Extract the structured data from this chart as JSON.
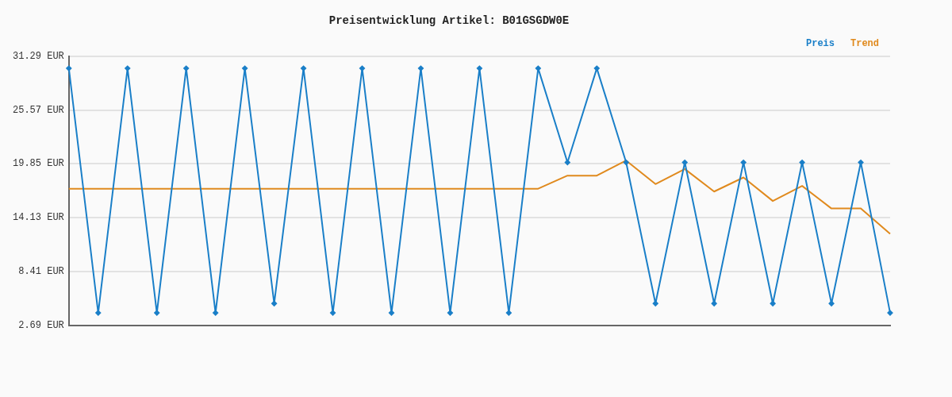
{
  "chart_data": {
    "type": "line",
    "title": "Preisentwicklung Artikel: B01GSGDW0E",
    "categories": [
      null,
      null,
      null,
      null,
      null,
      null,
      null,
      null,
      null,
      null,
      null,
      null,
      null,
      null,
      null,
      null,
      null,
      null,
      null,
      null,
      null,
      null,
      null,
      null,
      null,
      null,
      null,
      null,
      null
    ],
    "series": [
      {
        "name": "Preis",
        "color": "#1a7fc8",
        "marker": "diamond",
        "values": [
          30.0,
          4.0,
          30.0,
          4.0,
          30.0,
          4.0,
          30.0,
          5.0,
          30.0,
          4.0,
          30.0,
          4.0,
          30.0,
          4.0,
          30.0,
          4.0,
          30.0,
          20.0,
          30.0,
          20.0,
          5.0,
          20.0,
          5.0,
          20.0,
          5.0,
          20.0,
          5.0,
          20.0,
          4.0
        ]
      },
      {
        "name": "Trend",
        "color": "#e08a1e",
        "marker": "none",
        "values": [
          17.2,
          17.2,
          17.2,
          17.2,
          17.2,
          17.2,
          17.2,
          17.2,
          17.2,
          17.2,
          17.2,
          17.2,
          17.2,
          17.2,
          17.2,
          17.2,
          17.2,
          18.6,
          18.6,
          20.2,
          17.7,
          19.3,
          16.9,
          18.4,
          15.9,
          17.5,
          15.1,
          15.1,
          12.4
        ]
      }
    ],
    "ylim": [
      2.69,
      31.29
    ],
    "yticks": [
      {
        "value": 2.69,
        "label": "2.69 EUR"
      },
      {
        "value": 8.41,
        "label": "8.41 EUR"
      },
      {
        "value": 14.13,
        "label": "14.13 EUR"
      },
      {
        "value": 19.85,
        "label": "19.85 EUR"
      },
      {
        "value": 25.57,
        "label": "25.57 EUR"
      },
      {
        "value": 31.29,
        "label": "31.29 EUR"
      }
    ],
    "grid": "y",
    "legend": "top right",
    "line_style": "solid"
  }
}
